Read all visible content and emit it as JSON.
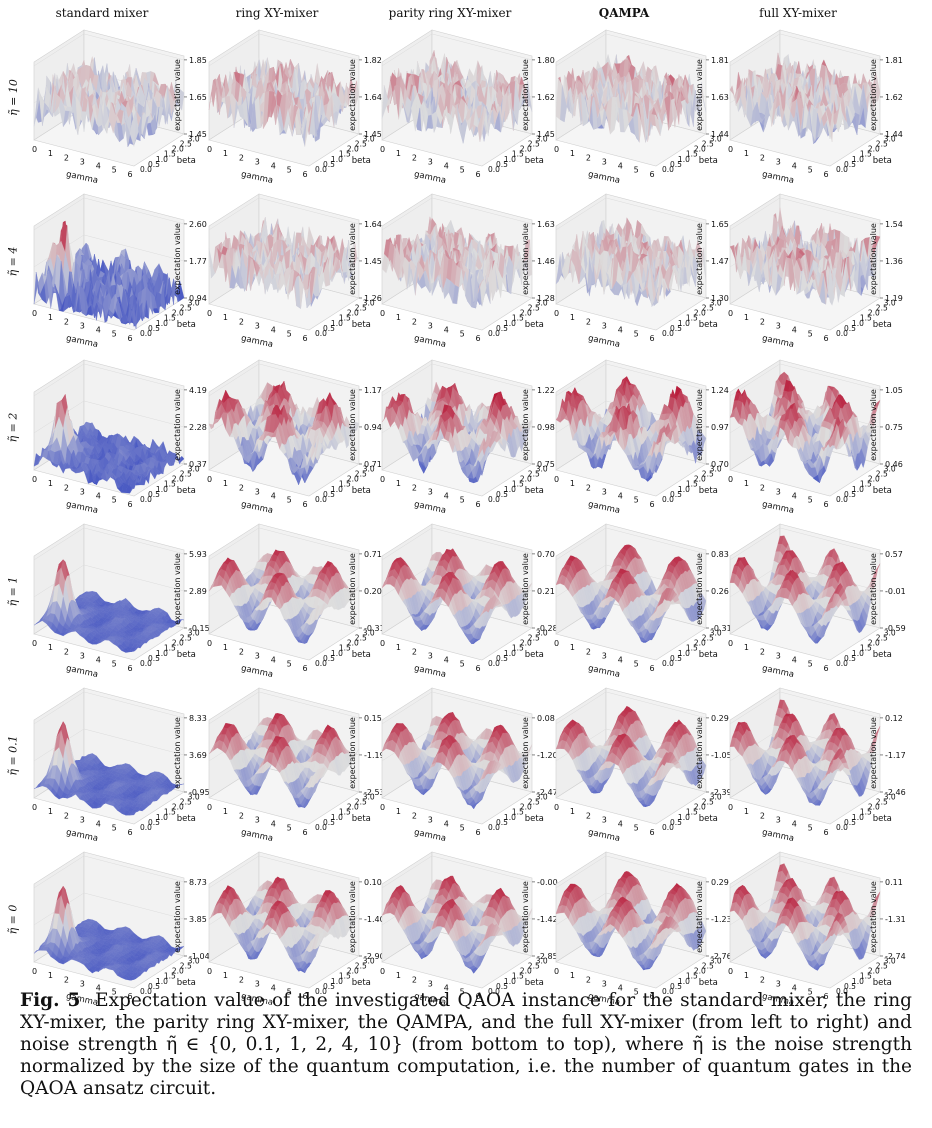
{
  "columns": [
    "standard mixer",
    "ring XY-mixer",
    "parity ring XY-mixer",
    "QAMPA",
    "full XY-mixer"
  ],
  "rows": [
    "η̃ = 10",
    "η̃ = 4",
    "η̃ = 2",
    "η̃ = 1",
    "η̃ = 0.1",
    "η̃ = 0"
  ],
  "axis_labels": {
    "x": "gamma",
    "y": "beta",
    "z": "expectation value"
  },
  "x_ticks": [
    "0",
    "1",
    "2",
    "3",
    "4",
    "5",
    "6"
  ],
  "y_ticks": [
    "0.0",
    "0.5",
    "1.0",
    "1.5",
    "2.0",
    "2.5",
    "3.0"
  ],
  "caption": {
    "label": "Fig. 5",
    "text": "Expectation value of the investigated QAOA instance for the standard mixer, the ring XY-mixer, the parity ring XY-mixer, the QAMPA, and the full XY-mixer (from left to right) and noise strength η̃ ∈ {0, 0.1, 1, 2, 4, 10} (from bottom to top), where η̃ is the noise strength normalized by the size of the quantum computation, i.e. the number of quantum gates in the QAOA ansatz circuit."
  },
  "colormap": {
    "low": "#3b4cc0",
    "mid": "#dddddd",
    "high": "#b40426"
  },
  "chart_data": [
    {
      "type": "surface3d",
      "row": "η̃ = 10",
      "column": "standard mixer",
      "zticks": [
        "1.45",
        "1.65",
        "1.85"
      ]
    },
    {
      "type": "surface3d",
      "row": "η̃ = 10",
      "column": "ring XY-mixer",
      "zticks": [
        "1.45",
        "1.64",
        "1.82"
      ]
    },
    {
      "type": "surface3d",
      "row": "η̃ = 10",
      "column": "parity ring XY-mixer",
      "zticks": [
        "1.45",
        "1.62",
        "1.80"
      ]
    },
    {
      "type": "surface3d",
      "row": "η̃ = 10",
      "column": "QAMPA",
      "zticks": [
        "1.44",
        "1.63",
        "1.81"
      ]
    },
    {
      "type": "surface3d",
      "row": "η̃ = 10",
      "column": "full XY-mixer",
      "zticks": [
        "1.44",
        "1.62",
        "1.81"
      ]
    },
    {
      "type": "surface3d",
      "row": "η̃ = 4",
      "column": "standard mixer",
      "zticks": [
        "0.94",
        "1.77",
        "2.60"
      ]
    },
    {
      "type": "surface3d",
      "row": "η̃ = 4",
      "column": "ring XY-mixer",
      "zticks": [
        "1.26",
        "1.45",
        "1.64"
      ]
    },
    {
      "type": "surface3d",
      "row": "η̃ = 4",
      "column": "parity ring XY-mixer",
      "zticks": [
        "1.28",
        "1.46",
        "1.63"
      ]
    },
    {
      "type": "surface3d",
      "row": "η̃ = 4",
      "column": "QAMPA",
      "zticks": [
        "1.30",
        "1.47",
        "1.65"
      ]
    },
    {
      "type": "surface3d",
      "row": "η̃ = 4",
      "column": "full XY-mixer",
      "zticks": [
        "1.19",
        "1.36",
        "1.54"
      ]
    },
    {
      "type": "surface3d",
      "row": "η̃ = 2",
      "column": "standard mixer",
      "zticks": [
        "0.37",
        "2.28",
        "4.19"
      ]
    },
    {
      "type": "surface3d",
      "row": "η̃ = 2",
      "column": "ring XY-mixer",
      "zticks": [
        "0.71",
        "0.94",
        "1.17"
      ]
    },
    {
      "type": "surface3d",
      "row": "η̃ = 2",
      "column": "parity ring XY-mixer",
      "zticks": [
        "0.75",
        "0.98",
        "1.22"
      ]
    },
    {
      "type": "surface3d",
      "row": "η̃ = 2",
      "column": "QAMPA",
      "zticks": [
        "0.70",
        "0.97",
        "1.24"
      ]
    },
    {
      "type": "surface3d",
      "row": "η̃ = 2",
      "column": "full XY-mixer",
      "zticks": [
        "0.46",
        "0.75",
        "1.05"
      ]
    },
    {
      "type": "surface3d",
      "row": "η̃ = 1",
      "column": "standard mixer",
      "zticks": [
        "-0.15",
        "2.89",
        "5.93"
      ]
    },
    {
      "type": "surface3d",
      "row": "η̃ = 1",
      "column": "ring XY-mixer",
      "zticks": [
        "-0.31",
        "0.20",
        "0.71"
      ]
    },
    {
      "type": "surface3d",
      "row": "η̃ = 1",
      "column": "parity ring XY-mixer",
      "zticks": [
        "-0.28",
        "0.21",
        "0.70"
      ]
    },
    {
      "type": "surface3d",
      "row": "η̃ = 1",
      "column": "QAMPA",
      "zticks": [
        "-0.31",
        "0.26",
        "0.83"
      ]
    },
    {
      "type": "surface3d",
      "row": "η̃ = 1",
      "column": "full XY-mixer",
      "zticks": [
        "-0.59",
        "-0.01",
        "0.57"
      ]
    },
    {
      "type": "surface3d",
      "row": "η̃ = 0.1",
      "column": "standard mixer",
      "zticks": [
        "-0.95",
        "3.69",
        "8.33"
      ]
    },
    {
      "type": "surface3d",
      "row": "η̃ = 0.1",
      "column": "ring XY-mixer",
      "zticks": [
        "-2.53",
        "-1.19",
        "0.15"
      ]
    },
    {
      "type": "surface3d",
      "row": "η̃ = 0.1",
      "column": "parity ring XY-mixer",
      "zticks": [
        "-2.47",
        "-1.20",
        "0.08"
      ]
    },
    {
      "type": "surface3d",
      "row": "η̃ = 0.1",
      "column": "QAMPA",
      "zticks": [
        "-2.39",
        "-1.05",
        "0.29"
      ]
    },
    {
      "type": "surface3d",
      "row": "η̃ = 0.1",
      "column": "full XY-mixer",
      "zticks": [
        "-2.46",
        "-1.17",
        "0.12"
      ]
    },
    {
      "type": "surface3d",
      "row": "η̃ = 0",
      "column": "standard mixer",
      "zticks": [
        "-1.04",
        "3.85",
        "8.73"
      ]
    },
    {
      "type": "surface3d",
      "row": "η̃ = 0",
      "column": "ring XY-mixer",
      "zticks": [
        "-2.90",
        "-1.40",
        "0.10"
      ]
    },
    {
      "type": "surface3d",
      "row": "η̃ = 0",
      "column": "parity ring XY-mixer",
      "zticks": [
        "-2.85",
        "-1.42",
        "-0.00"
      ]
    },
    {
      "type": "surface3d",
      "row": "η̃ = 0",
      "column": "QAMPA",
      "zticks": [
        "-2.76",
        "-1.23",
        "0.29"
      ]
    },
    {
      "type": "surface3d",
      "row": "η̃ = 0",
      "column": "full XY-mixer",
      "zticks": [
        "-2.74",
        "-1.31",
        "0.11"
      ]
    }
  ]
}
